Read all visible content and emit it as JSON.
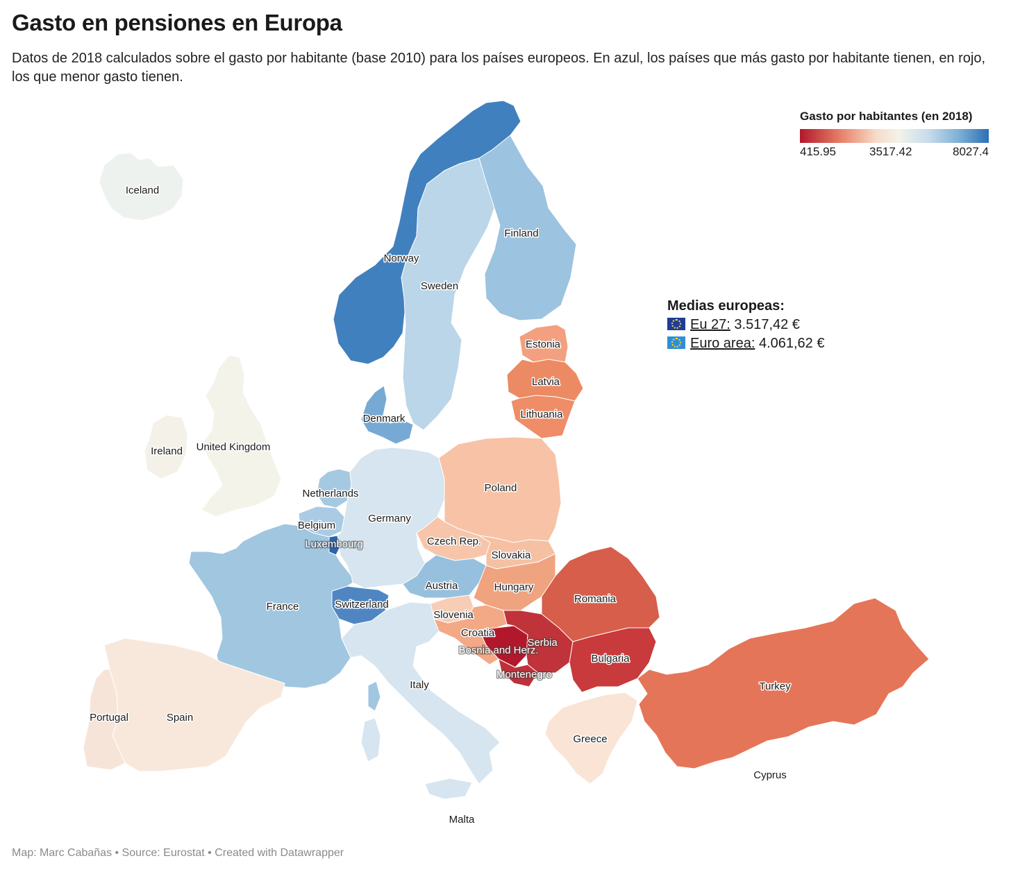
{
  "title": "Gasto en pensiones en Europa",
  "subtitle": "Datos de 2018 calculados sobre el gasto por habitante (base 2010) para los países europeos. En azul, los países que más gasto por habitante tienen, en rojo, los que menor gasto tienen.",
  "legend": {
    "title": "Gasto por habitantes (en 2018)",
    "min": "415.95",
    "mid": "3517.42",
    "max": "8027.4",
    "colors": [
      "#b2182b",
      "#e8826a",
      "#f7d9c7",
      "#f4f2e9",
      "#c7dceb",
      "#7fb0d6",
      "#2d6fb5"
    ]
  },
  "averages": {
    "title": "Medias europeas:",
    "eu27_label": "Eu 27:",
    "eu27_value": "3.517,42 €",
    "euro_label": "Euro area:",
    "euro_value": "4.061,62 €"
  },
  "countries": {
    "iceland": {
      "name": "Iceland",
      "color": "#eef2ee"
    },
    "norway": {
      "name": "Norway",
      "color": "#4180be"
    },
    "sweden": {
      "name": "Sweden",
      "color": "#bad6e8"
    },
    "finland": {
      "name": "Finland",
      "color": "#9cc3df"
    },
    "estonia": {
      "name": "Estonia",
      "color": "#f2a07f"
    },
    "latvia": {
      "name": "Latvia",
      "color": "#ec8a64"
    },
    "lithuania": {
      "name": "Lithuania",
      "color": "#ee8d67"
    },
    "denmark": {
      "name": "Denmark",
      "color": "#76aad4"
    },
    "uk": {
      "name": "United Kingdom",
      "color": "#f4f3ea"
    },
    "ireland": {
      "name": "Ireland",
      "color": "#f4f1e8"
    },
    "netherlands": {
      "name": "Netherlands",
      "color": "#a6c9e2"
    },
    "belgium": {
      "name": "Belgium",
      "color": "#aacbe3"
    },
    "luxembourg": {
      "name": "Luxembourg",
      "color": "#2a64ad"
    },
    "germany": {
      "name": "Germany",
      "color": "#d6e5ef"
    },
    "poland": {
      "name": "Poland",
      "color": "#f7c2a6"
    },
    "czech": {
      "name": "Czech Rep.",
      "color": "#f6c5aa"
    },
    "slovakia": {
      "name": "Slovakia",
      "color": "#f6c0a3"
    },
    "austria": {
      "name": "Austria",
      "color": "#97c0de"
    },
    "hungary": {
      "name": "Hungary",
      "color": "#f0a37f"
    },
    "switzerland": {
      "name": "Switzerland",
      "color": "#4f86c2"
    },
    "france": {
      "name": "France",
      "color": "#a0c6e0"
    },
    "slovenia": {
      "name": "Slovenia",
      "color": "#f7cdb6"
    },
    "croatia": {
      "name": "Croatia",
      "color": "#f3a886"
    },
    "bosnia": {
      "name": "Bosnia and Herz.",
      "color": "#b2182b"
    },
    "montenegro": {
      "name": "Montenegro",
      "color": "#c0303a"
    },
    "serbia": {
      "name": "Serbia",
      "color": "#c0333a"
    },
    "romania": {
      "name": "Romania",
      "color": "#d75e4a"
    },
    "bulgaria": {
      "name": "Bulgaria",
      "color": "#c83a3b"
    },
    "turkey": {
      "name": "Turkey",
      "color": "#e57558"
    },
    "greece": {
      "name": "Greece",
      "color": "#f9e4d6"
    },
    "cyprus": {
      "name": "Cyprus",
      "color": "#ffffff"
    },
    "italy": {
      "name": "Italy",
      "color": "#d6e5ef"
    },
    "malta": {
      "name": "Malta",
      "color": "#ffffff"
    },
    "spain": {
      "name": "Spain",
      "color": "#f8e8dc"
    },
    "portugal": {
      "name": "Portugal",
      "color": "#f7e4d8"
    }
  },
  "footer": "Map: Marc Cabañas • Source: Eurostat • Created with Datawrapper"
}
